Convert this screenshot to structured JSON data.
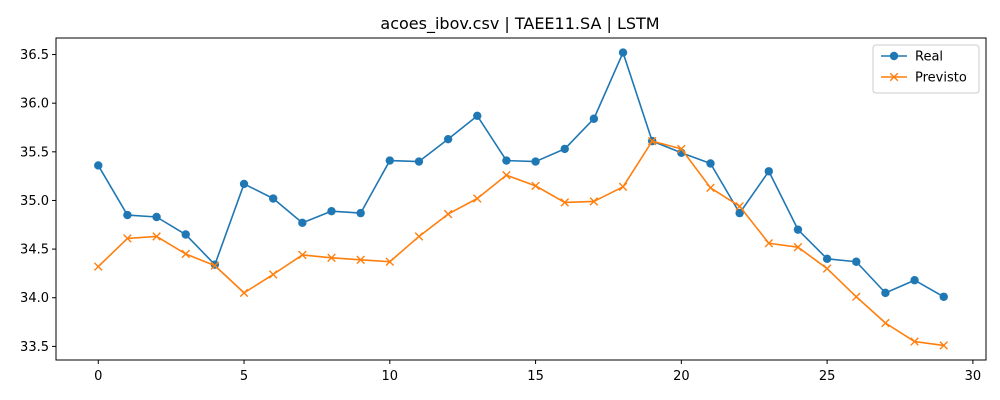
{
  "chart_data": {
    "type": "line",
    "title": "acoes_ibov.csv | TAEE11.SA | LSTM",
    "xlabel": "",
    "ylabel": "",
    "xlim": [
      -1.45,
      30.45
    ],
    "ylim": [
      33.36,
      36.67
    ],
    "x_ticks": [
      0,
      5,
      10,
      15,
      20,
      25,
      30
    ],
    "y_ticks": [
      33.5,
      34.0,
      34.5,
      35.0,
      35.5,
      36.0,
      36.5
    ],
    "y_tick_labels": [
      "33.5",
      "34.0",
      "34.5",
      "35.0",
      "35.5",
      "36.0",
      "36.5"
    ],
    "grid": false,
    "legend_position": "top-right",
    "x": [
      0,
      1,
      2,
      3,
      4,
      5,
      6,
      7,
      8,
      9,
      10,
      11,
      12,
      13,
      14,
      15,
      16,
      17,
      18,
      19,
      20,
      21,
      22,
      23,
      24,
      25,
      26,
      27,
      28,
      29
    ],
    "series": [
      {
        "name": "Real",
        "marker": "circle",
        "color": "#1f77b4",
        "values": [
          35.36,
          34.85,
          34.83,
          34.65,
          34.34,
          35.17,
          35.02,
          34.77,
          34.89,
          34.87,
          35.41,
          35.4,
          35.63,
          35.87,
          35.41,
          35.4,
          35.53,
          35.84,
          36.52,
          35.61,
          35.49,
          35.38,
          34.87,
          35.3,
          34.7,
          34.4,
          34.37,
          34.05,
          34.18,
          34.01
        ]
      },
      {
        "name": "Previsto",
        "marker": "x",
        "color": "#ff7f0e",
        "values": [
          34.32,
          34.61,
          34.63,
          34.45,
          34.33,
          34.05,
          34.24,
          34.44,
          34.41,
          34.39,
          34.37,
          34.63,
          34.86,
          35.02,
          35.26,
          35.15,
          34.98,
          34.99,
          35.14,
          35.61,
          35.53,
          35.13,
          34.94,
          34.56,
          34.52,
          34.3,
          34.01,
          33.74,
          33.55,
          33.51
        ]
      }
    ]
  }
}
